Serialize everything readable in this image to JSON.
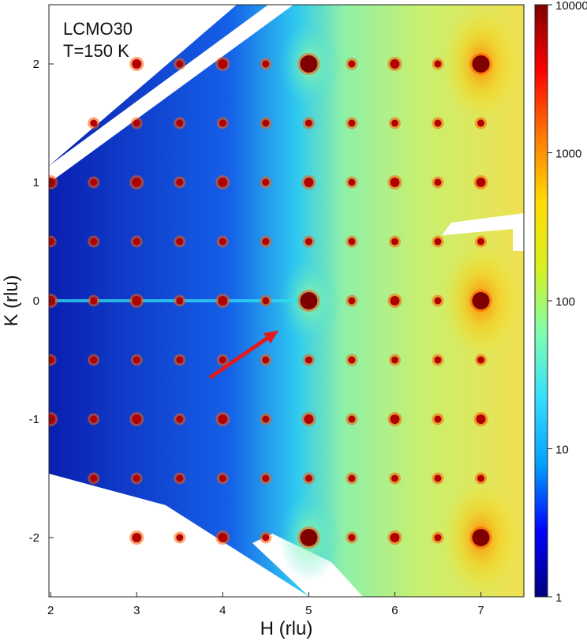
{
  "chart_data": {
    "type": "heatmap",
    "annotation_lines": [
      "LCMO30",
      "T=150 K"
    ],
    "xlabel": "H (rlu)",
    "ylabel": "K (rlu)",
    "xlim": [
      1.98,
      7.5
    ],
    "ylim": [
      -2.5,
      2.5
    ],
    "x_ticks": [
      2,
      3,
      4,
      5,
      6,
      7
    ],
    "y_ticks": [
      -2,
      -1,
      0,
      1,
      2
    ],
    "colorbar": {
      "scale": "log",
      "range": [
        1,
        10000
      ],
      "ticks": [
        1,
        10,
        100,
        1000,
        10000
      ],
      "colormap": "jet",
      "colors": [
        "#00007f",
        "#0000ff",
        "#00a0ff",
        "#33ddff",
        "#7dffb0",
        "#d8f020",
        "#ffdd00",
        "#ff7a00",
        "#ff0000",
        "#7f0000"
      ]
    },
    "bragg_peaks": {
      "h_values": [
        2.0,
        2.5,
        3.0,
        3.5,
        4.0,
        4.5,
        5.0,
        5.5,
        6.0,
        6.5,
        7.0
      ],
      "k_values": [
        -2.0,
        -1.5,
        -1.0,
        -0.5,
        0.0,
        0.5,
        1.0,
        1.5,
        2.0
      ],
      "strong_peaks": [
        {
          "h": 5,
          "k": 0,
          "intensity": 10000
        },
        {
          "h": 7,
          "k": 0,
          "intensity": 10000
        },
        {
          "h": 5,
          "k": 2,
          "intensity": 10000
        },
        {
          "h": 7,
          "k": 2,
          "intensity": 10000
        },
        {
          "h": 5,
          "k": -2,
          "intensity": 10000
        },
        {
          "h": 7,
          "k": -2,
          "intensity": 10000
        }
      ]
    },
    "arrow": {
      "from": [
        3.85,
        -0.65
      ],
      "to": [
        4.65,
        -0.25
      ],
      "color": "#e31a1c"
    }
  }
}
